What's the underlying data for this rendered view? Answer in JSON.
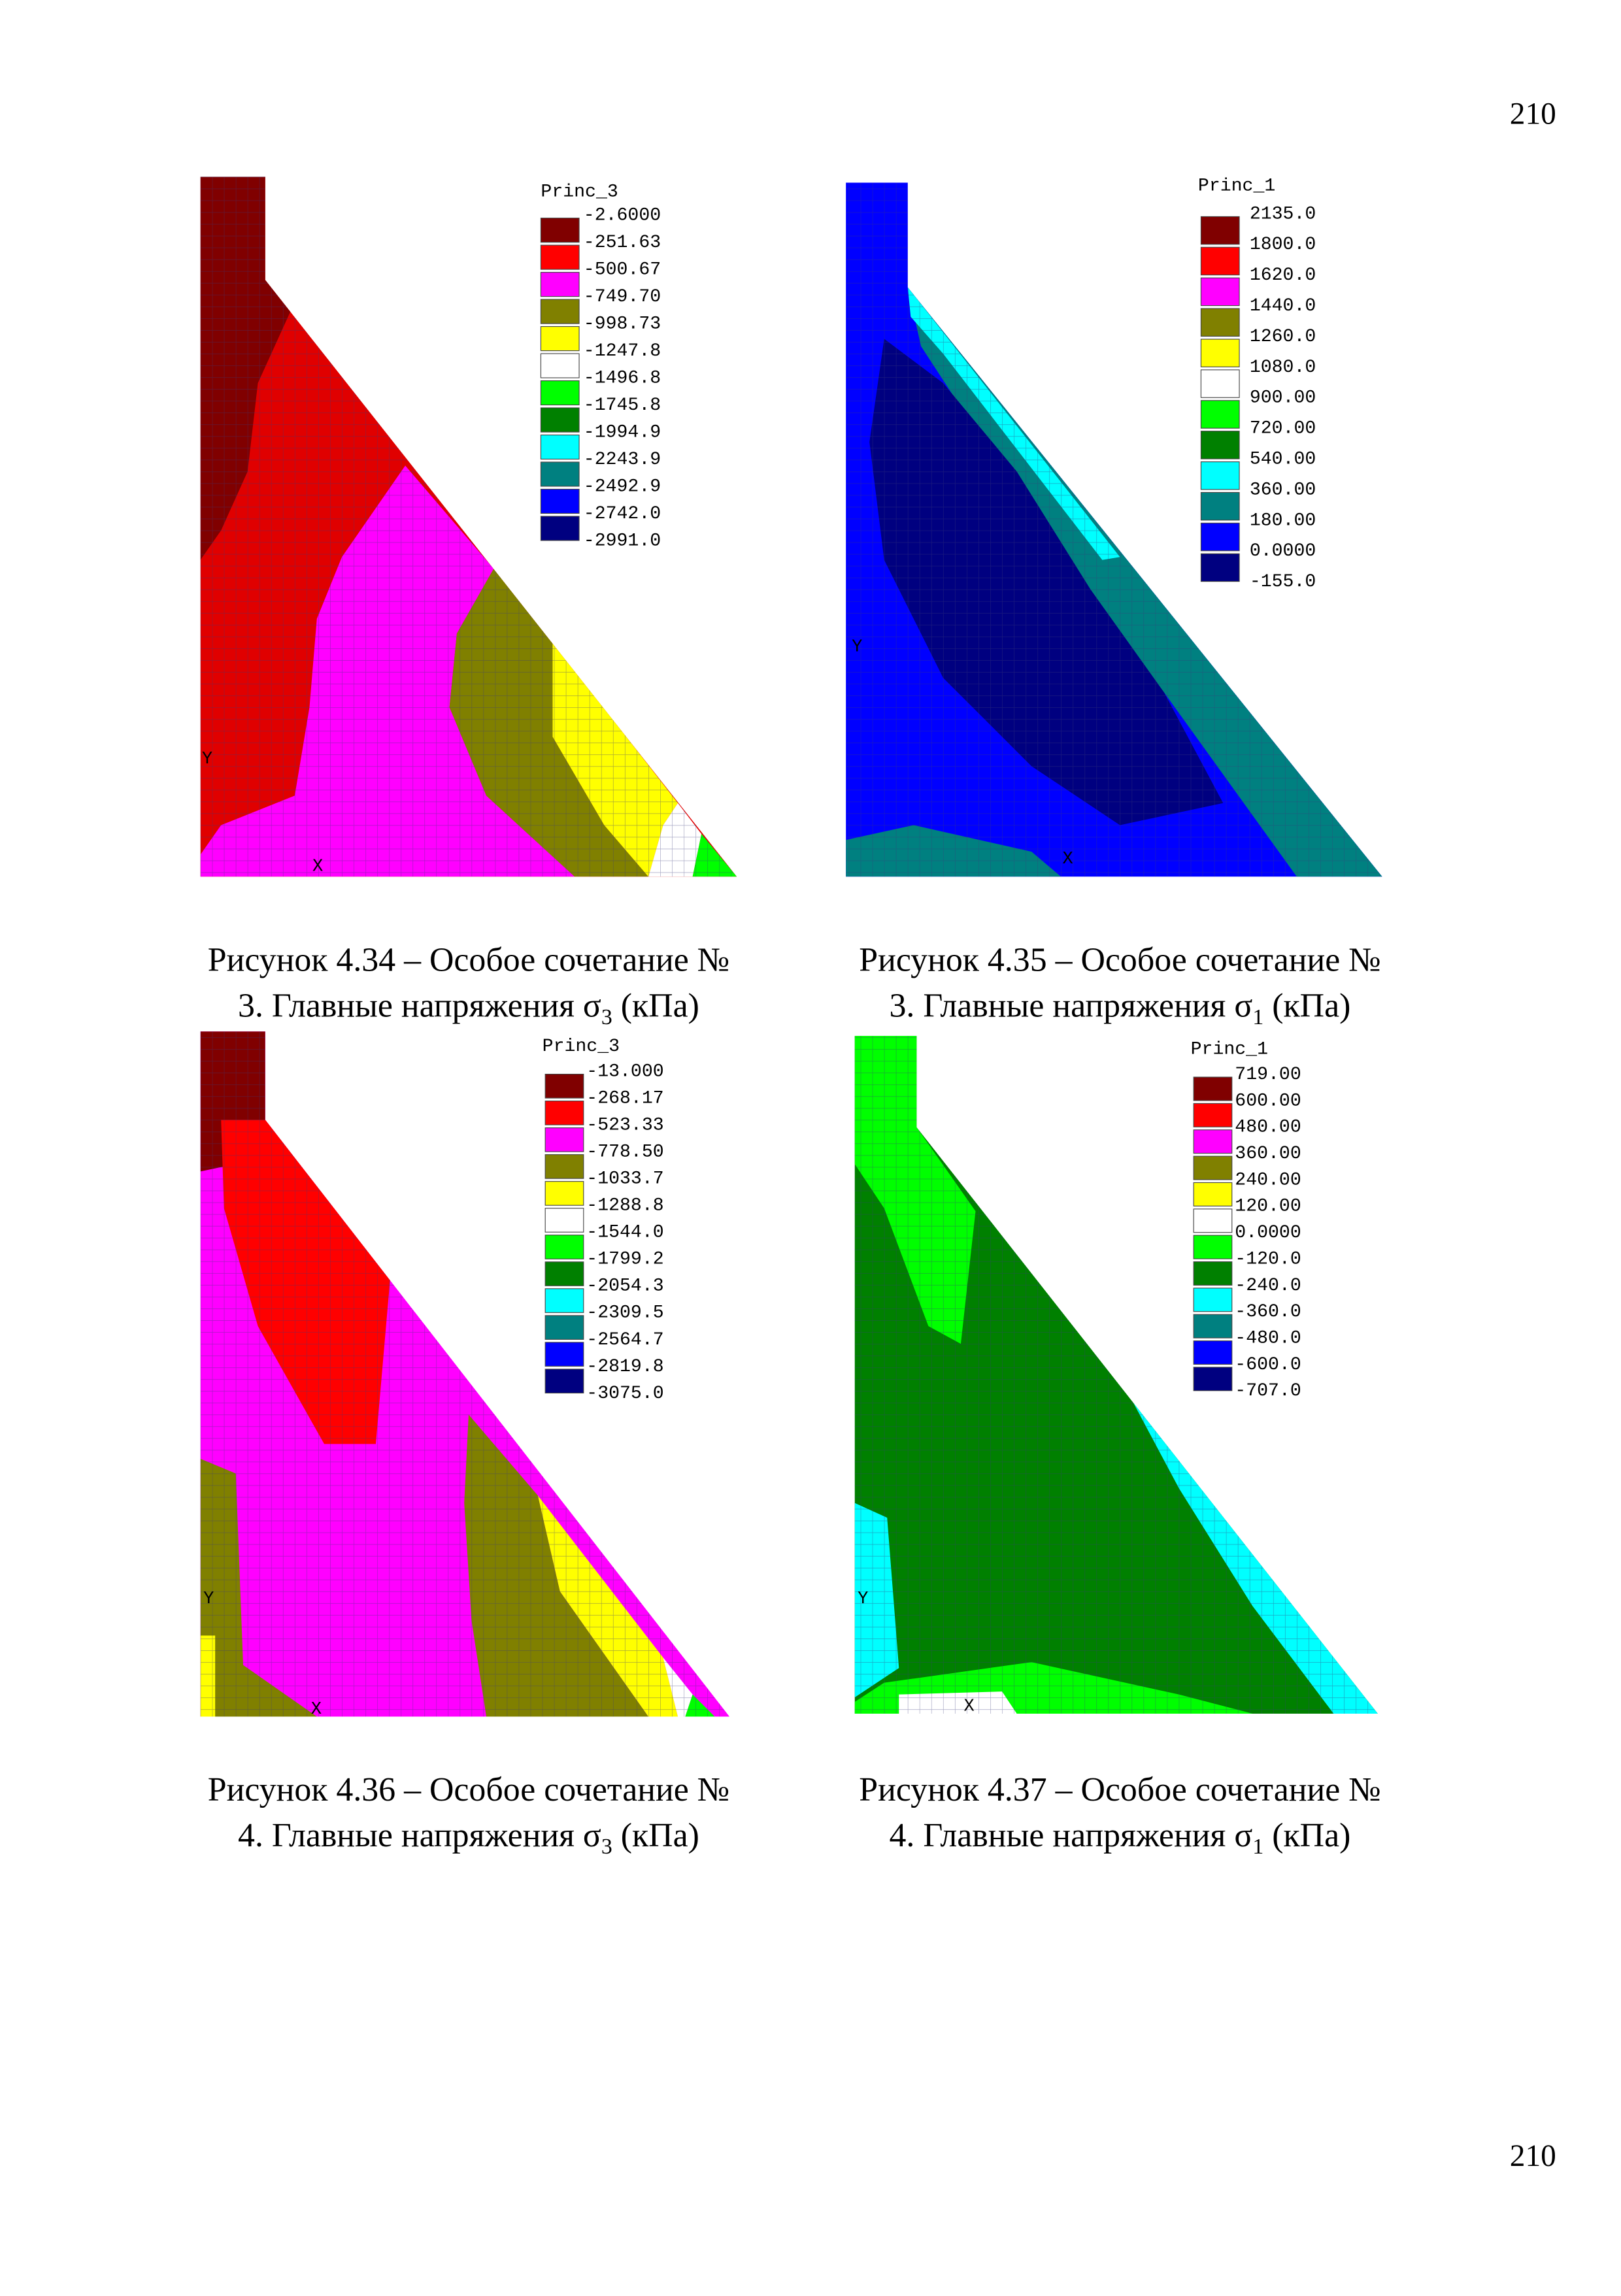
{
  "page_number_top": "210",
  "page_number_bottom": "210",
  "figures": [
    {
      "legend_title": "Princ_3",
      "legend": [
        "-2.6000",
        "-251.63",
        "-500.67",
        "-749.70",
        "-998.73",
        "-1247.8",
        "-1496.8",
        "-1745.8",
        "-1994.9",
        "-2243.9",
        "-2492.9",
        "-2742.0",
        "-2991.0"
      ],
      "axes": [
        "Y",
        "X"
      ],
      "caption": {
        "line1": "Рисунок 4.34 – Особое сочетание №",
        "line2": "3. Главные напряжения σ",
        "sub": "3",
        "line2_end": " (кПа)"
      }
    },
    {
      "legend_title": "Princ_1",
      "legend": [
        "2135.0",
        "1800.0",
        "1620.0",
        "1440.0",
        "1260.0",
        "1080.0",
        "900.00",
        "720.00",
        "540.00",
        "360.00",
        "180.00",
        "0.0000",
        "-155.0"
      ],
      "axes": [
        "Y",
        "X"
      ],
      "caption": {
        "line1": "Рисунок 4.35 – Особое сочетание №",
        "line2": "3. Главные напряжения σ",
        "sub": "1",
        "line2_end": " (кПа)"
      }
    },
    {
      "legend_title": "Princ_3",
      "legend": [
        "-13.000",
        "-268.17",
        "-523.33",
        "-778.50",
        "-1033.7",
        "-1288.8",
        "-1544.0",
        "-1799.2",
        "-2054.3",
        "-2309.5",
        "-2564.7",
        "-2819.8",
        "-3075.0"
      ],
      "axes": [
        "Y",
        "X"
      ],
      "caption": {
        "line1": "Рисунок 4.36 – Особое сочетание №",
        "line2": "4. Главные напряжения σ",
        "sub": "3",
        "line2_end": " (кПа)"
      }
    },
    {
      "legend_title": "Princ_1",
      "legend": [
        "719.00",
        "600.00",
        "480.00",
        "360.00",
        "240.00",
        "120.00",
        "0.0000",
        "-120.0",
        "-240.0",
        "-360.0",
        "-480.0",
        "-600.0",
        "-707.0"
      ],
      "axes": [
        "Y",
        "X"
      ],
      "caption": {
        "line1": "Рисунок 4.37 – Особое сочетание №",
        "line2": "4. Главные напряжения σ",
        "sub": "1",
        "line2_end": " (кПа)"
      }
    }
  ]
}
